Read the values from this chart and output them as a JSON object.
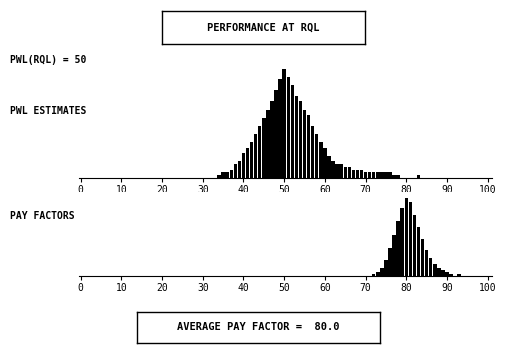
{
  "title": "PERFORMANCE AT RQL",
  "pwl_rql_label": "PWL(RQL) = 50",
  "pwl_estimates_label": "PWL ESTIMATES",
  "pay_factors_label": "PAY FACTORS",
  "avg_pay_factor_label": "AVERAGE PAY FACTOR =  80.0",
  "xlim": [
    0,
    100
  ],
  "xticks": [
    0,
    10,
    20,
    30,
    40,
    50,
    60,
    70,
    80,
    90,
    100
  ],
  "bar_color": "#000000",
  "background_color": "#ffffff",
  "pwl_bins": [
    34,
    35,
    36,
    37,
    38,
    39,
    40,
    41,
    42,
    43,
    44,
    45,
    46,
    47,
    48,
    49,
    50,
    51,
    52,
    53,
    54,
    55,
    56,
    57,
    58,
    59,
    60,
    61,
    62,
    63,
    64,
    65,
    66,
    67,
    68,
    69,
    70,
    71,
    72,
    73,
    74,
    75,
    76,
    77,
    78,
    83
  ],
  "pwl_heights": [
    1,
    2,
    2,
    3,
    5,
    6,
    9,
    11,
    13,
    16,
    19,
    22,
    25,
    28,
    32,
    36,
    40,
    37,
    34,
    30,
    28,
    25,
    23,
    19,
    16,
    13,
    11,
    8,
    6,
    5,
    5,
    4,
    4,
    3,
    3,
    3,
    2,
    2,
    2,
    2,
    2,
    2,
    2,
    1,
    1,
    1
  ],
  "pf_bins": [
    72,
    73,
    74,
    75,
    76,
    77,
    78,
    79,
    80,
    81,
    82,
    83,
    84,
    85,
    86,
    87,
    88,
    89,
    90,
    91,
    93
  ],
  "pf_heights": [
    1,
    2,
    4,
    8,
    14,
    20,
    27,
    33,
    38,
    36,
    30,
    24,
    18,
    13,
    9,
    6,
    4,
    3,
    2,
    1,
    1
  ]
}
